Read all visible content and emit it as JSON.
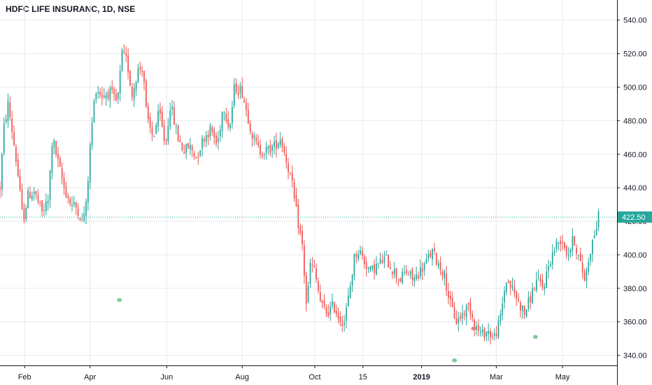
{
  "title": "HDFC LIFE INSURANC, 1D, NSE",
  "colors": {
    "up": "#26a69a",
    "down": "#ef5350",
    "grid": "#e6e9ee",
    "axis": "#131722",
    "price_line": "#26a69a",
    "marker_green": "#7ecb9b",
    "marker_red": "#f08080"
  },
  "chart_data": {
    "type": "candlestick",
    "title": "HDFC LIFE INSURANC, 1D, NSE",
    "xlabel": "",
    "ylabel": "",
    "ylim": [
      334,
      552
    ],
    "y_ticks": [
      340,
      360,
      380,
      400,
      420,
      440,
      460,
      480,
      500,
      520,
      540
    ],
    "y_tick_labels": [
      "340.00",
      "360.00",
      "380.00",
      "400.00",
      "420.00",
      "440.00",
      "460.00",
      "480.00",
      "500.00",
      "520.00",
      "540.00"
    ],
    "x_ticks": [
      {
        "label": "Feb",
        "bold": false,
        "pos": 0.0399
      },
      {
        "label": "Apr",
        "bold": false,
        "pos": 0.1459
      },
      {
        "label": "Jun",
        "bold": false,
        "pos": 0.2703
      },
      {
        "label": "Aug",
        "bold": false,
        "pos": 0.3925
      },
      {
        "label": "Oct",
        "bold": false,
        "pos": 0.5102
      },
      {
        "label": "15",
        "bold": false,
        "pos": 0.5882
      },
      {
        "label": "2019",
        "bold": true,
        "pos": 0.6833
      },
      {
        "label": "Mar",
        "bold": false,
        "pos": 0.8043
      },
      {
        "label": "May",
        "bold": false,
        "pos": 0.9117
      }
    ],
    "last_price": 422.5,
    "last_price_label": "422.50",
    "grid": true,
    "markers": [
      {
        "pos": 0.1935,
        "price": 373.0,
        "kind": "green-dot"
      },
      {
        "pos": 0.7366,
        "price": 337.0,
        "kind": "green-dot"
      },
      {
        "pos": 0.7675,
        "price": 356.0,
        "kind": "red-dot"
      },
      {
        "pos": 0.8677,
        "price": 351.0,
        "kind": "green-dot"
      }
    ],
    "series_keypoints": [
      [
        0.0,
        440
      ],
      [
        0.006,
        475
      ],
      [
        0.013,
        490
      ],
      [
        0.022,
        468
      ],
      [
        0.03,
        445
      ],
      [
        0.037,
        420
      ],
      [
        0.045,
        435
      ],
      [
        0.055,
        438
      ],
      [
        0.068,
        425
      ],
      [
        0.078,
        432
      ],
      [
        0.085,
        470
      ],
      [
        0.094,
        455
      ],
      [
        0.104,
        440
      ],
      [
        0.115,
        430
      ],
      [
        0.125,
        428
      ],
      [
        0.133,
        420
      ],
      [
        0.14,
        430
      ],
      [
        0.147,
        470
      ],
      [
        0.155,
        500
      ],
      [
        0.165,
        495
      ],
      [
        0.178,
        497
      ],
      [
        0.19,
        490
      ],
      [
        0.198,
        520
      ],
      [
        0.206,
        515
      ],
      [
        0.214,
        495
      ],
      [
        0.223,
        510
      ],
      [
        0.232,
        512
      ],
      [
        0.238,
        480
      ],
      [
        0.248,
        470
      ],
      [
        0.258,
        485
      ],
      [
        0.268,
        465
      ],
      [
        0.276,
        490
      ],
      [
        0.288,
        470
      ],
      [
        0.298,
        462
      ],
      [
        0.307,
        465
      ],
      [
        0.318,
        458
      ],
      [
        0.33,
        470
      ],
      [
        0.342,
        475
      ],
      [
        0.352,
        465
      ],
      [
        0.362,
        490
      ],
      [
        0.372,
        475
      ],
      [
        0.38,
        500
      ],
      [
        0.392,
        498
      ],
      [
        0.4,
        485
      ],
      [
        0.41,
        470
      ],
      [
        0.42,
        462
      ],
      [
        0.432,
        462
      ],
      [
        0.445,
        465
      ],
      [
        0.455,
        470
      ],
      [
        0.465,
        455
      ],
      [
        0.472,
        445
      ],
      [
        0.478,
        430
      ],
      [
        0.485,
        415
      ],
      [
        0.49,
        405
      ],
      [
        0.497,
        368
      ],
      [
        0.503,
        395
      ],
      [
        0.51,
        390
      ],
      [
        0.52,
        370
      ],
      [
        0.53,
        365
      ],
      [
        0.54,
        370
      ],
      [
        0.55,
        362
      ],
      [
        0.558,
        360
      ],
      [
        0.565,
        375
      ],
      [
        0.575,
        400
      ],
      [
        0.582,
        403
      ],
      [
        0.592,
        395
      ],
      [
        0.6,
        390
      ],
      [
        0.612,
        394
      ],
      [
        0.625,
        398
      ],
      [
        0.635,
        392
      ],
      [
        0.648,
        385
      ],
      [
        0.658,
        390
      ],
      [
        0.67,
        385
      ],
      [
        0.68,
        390
      ],
      [
        0.69,
        395
      ],
      [
        0.7,
        402
      ],
      [
        0.71,
        395
      ],
      [
        0.72,
        388
      ],
      [
        0.73,
        370
      ],
      [
        0.74,
        360
      ],
      [
        0.75,
        365
      ],
      [
        0.76,
        370
      ],
      [
        0.77,
        358
      ],
      [
        0.78,
        352
      ],
      [
        0.79,
        355
      ],
      [
        0.8,
        350
      ],
      [
        0.81,
        360
      ],
      [
        0.82,
        385
      ],
      [
        0.83,
        380
      ],
      [
        0.84,
        372
      ],
      [
        0.85,
        365
      ],
      [
        0.86,
        375
      ],
      [
        0.87,
        385
      ],
      [
        0.88,
        380
      ],
      [
        0.89,
        395
      ],
      [
        0.9,
        405
      ],
      [
        0.91,
        410
      ],
      [
        0.92,
        400
      ],
      [
        0.93,
        410
      ],
      [
        0.94,
        395
      ],
      [
        0.948,
        385
      ],
      [
        0.955,
        400
      ],
      [
        0.963,
        412
      ],
      [
        0.97,
        422.5
      ]
    ]
  }
}
